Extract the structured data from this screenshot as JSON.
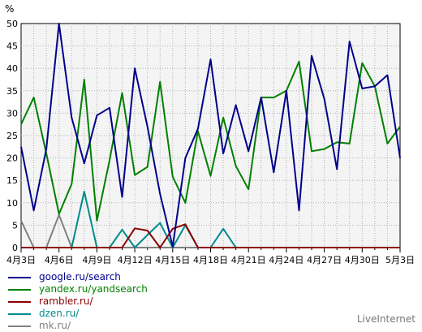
{
  "chart_data": {
    "type": "line",
    "ylabel": "%",
    "ylim": [
      0,
      50
    ],
    "yticks": [
      0,
      5,
      10,
      15,
      20,
      25,
      30,
      35,
      40,
      45,
      50
    ],
    "grid": true,
    "legend_position": "bottom-left",
    "x": [
      "4月3日",
      "4月4日",
      "4月5日",
      "4月6日",
      "4月7日",
      "4月8日",
      "4月9日",
      "4月10日",
      "4月11日",
      "4月12日",
      "4月13日",
      "4月14日",
      "4月15日",
      "4月16日",
      "4月17日",
      "4月18日",
      "4月19日",
      "4月20日",
      "4月21日",
      "4月22日",
      "4月23日",
      "4月24日",
      "4月25日",
      "4月26日",
      "4月27日",
      "4月28日",
      "4月29日",
      "4月30日",
      "5月1日",
      "5月2日",
      "5月3日"
    ],
    "xtick_labels": [
      "4月3日",
      "4月6日",
      "4月9日",
      "4月12日",
      "4月15日",
      "4月18日",
      "4月21日",
      "4月24日",
      "4月27日",
      "4月30日",
      "5月3日"
    ],
    "series": [
      {
        "name": "google.ru/search",
        "color": "#00008b",
        "values": [
          22.5,
          8.3,
          22.0,
          50.0,
          29.0,
          18.8,
          29.5,
          31.2,
          11.3,
          40.0,
          27.0,
          12.0,
          0.2,
          20.0,
          26.5,
          42.0,
          21.0,
          31.8,
          21.5,
          33.5,
          16.8,
          35.0,
          8.3,
          42.8,
          33.2,
          17.5,
          46.0,
          35.5,
          36.0,
          38.5,
          20.0
        ]
      },
      {
        "name": "yandex.ru/yandsearch",
        "color": "#008000",
        "values": [
          27.5,
          33.5,
          21.0,
          7.5,
          14.2,
          37.5,
          6.0,
          19.5,
          34.5,
          16.2,
          18.0,
          37.0,
          15.8,
          10.0,
          26.0,
          16.0,
          29.0,
          18.2,
          13.0,
          33.5,
          33.5,
          35.0,
          41.5,
          21.5,
          22.0,
          23.5,
          23.2,
          41.2,
          36.0,
          23.2,
          27.0
        ]
      },
      {
        "name": "rambler.ru/",
        "color": "#8b0000",
        "values": [
          0,
          0,
          0,
          0,
          0,
          0,
          0,
          0,
          0,
          4.3,
          3.8,
          0,
          4.2,
          5.2,
          0,
          0,
          0,
          0,
          0,
          0,
          0,
          0,
          0,
          0,
          0,
          0,
          0,
          0,
          0,
          0,
          0
        ]
      },
      {
        "name": "dzen.ru/",
        "color": "#008b8b",
        "values": [
          0,
          0,
          0,
          0,
          0,
          12.5,
          0,
          0,
          4.0,
          0,
          2.8,
          5.5,
          0,
          5.0,
          0,
          0,
          4.2,
          0,
          0,
          0,
          0,
          0,
          0,
          0,
          0,
          0,
          0,
          0,
          0,
          0,
          0
        ]
      },
      {
        "name": "mk.ru/",
        "color": "#808080",
        "values": [
          6.0,
          0,
          0,
          7.3,
          0,
          0,
          0,
          0,
          0,
          0,
          0,
          0,
          0,
          0,
          0,
          0,
          0,
          0,
          0,
          0,
          0,
          0,
          0,
          0,
          0,
          0,
          0,
          0,
          0,
          0,
          0
        ]
      }
    ]
  },
  "credit": "LiveInternet"
}
